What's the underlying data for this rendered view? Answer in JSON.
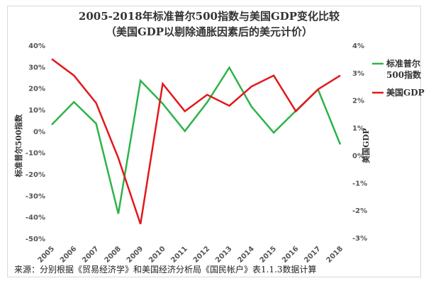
{
  "chart_data": {
    "type": "line",
    "title": "2005-2018年标准普尔500指数与美国GDP变化比较",
    "subtitle": "（美国GDP以剔除通胀因素后的美元计价）",
    "x": [
      "2005",
      "2006",
      "2007",
      "2008",
      "2009",
      "2010",
      "2011",
      "2012",
      "2013",
      "2014",
      "2015",
      "2016",
      "2017",
      "2018"
    ],
    "ylabel_left": "标准普尔500指数",
    "ylabel_right": "美国GDP",
    "y_left_ticks": [
      "40%",
      "30%",
      "20%",
      "10%",
      "0%",
      "-10%",
      "-20%",
      "-30%",
      "-40%",
      "-50%"
    ],
    "y_right_ticks": [
      "4%",
      "3%",
      "2%",
      "1%",
      "0%",
      "-1%",
      "-2%",
      "-3%"
    ],
    "ylim_left": [
      -50,
      40
    ],
    "ylim_right": [
      -3,
      4
    ],
    "series": [
      {
        "name": "标准普尔500指数",
        "axis": "left",
        "color": "#2db34a",
        "values": [
          3.0,
          13.6,
          3.5,
          -38.5,
          23.5,
          12.8,
          0.0,
          13.4,
          29.6,
          11.4,
          -0.7,
          9.5,
          19.4,
          -6.2
        ]
      },
      {
        "name": "美国GDP",
        "axis": "right",
        "color": "#e3171b",
        "values": [
          3.5,
          2.9,
          1.9,
          -0.1,
          -2.5,
          2.6,
          1.6,
          2.2,
          1.8,
          2.5,
          2.9,
          1.6,
          2.4,
          2.9
        ]
      }
    ],
    "legend_position": "right",
    "grid": false
  },
  "source": "来源：分别根据《贸易经济学》和美国经济分析局《国民帐户》表1.1.3数据计算"
}
